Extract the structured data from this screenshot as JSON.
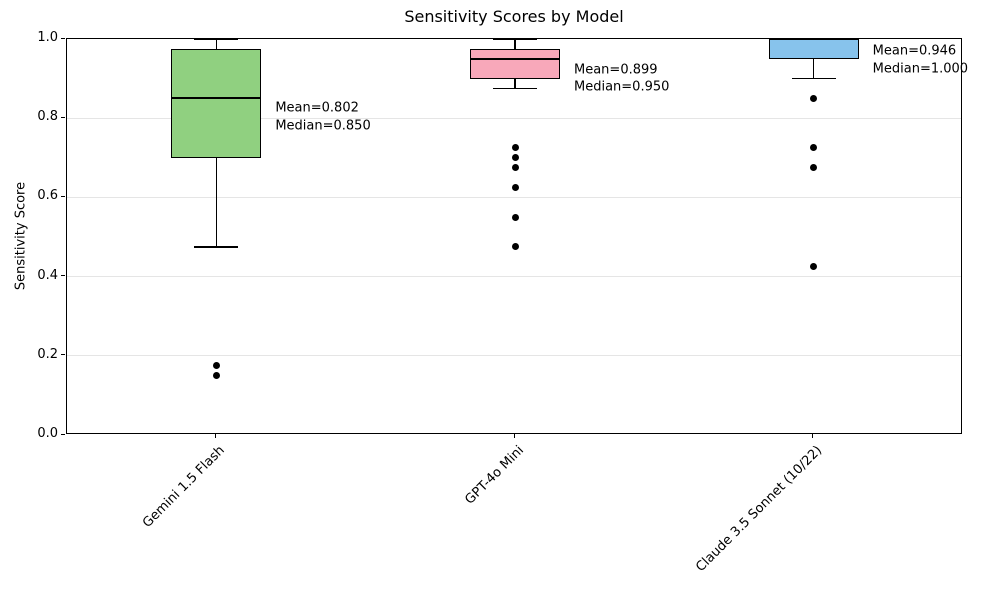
{
  "chart_data": {
    "type": "boxplot",
    "title": "Sensitivity Scores by Model",
    "xlabel": "",
    "ylabel": "Sensitivity Score",
    "ylim": [
      0.0,
      1.0
    ],
    "yticks": [
      0.0,
      0.2,
      0.4,
      0.6,
      0.8,
      1.0
    ],
    "ytick_labels": [
      "0.0",
      "0.2",
      "0.4",
      "0.6",
      "0.8",
      "1.0"
    ],
    "grid": "horizontal-light",
    "legend": "none",
    "categories": [
      "Gemini 1.5 Flash",
      "GPT-4o Mini",
      "Claude 3.5 Sonnet (10/22)"
    ],
    "series": [
      {
        "label": "Gemini 1.5 Flash",
        "box_color": "#90d080",
        "whisker_low": 0.475,
        "q1": 0.7,
        "median": 0.85,
        "q3": 0.975,
        "whisker_high": 1.0,
        "mean": 0.802,
        "outliers": [
          0.175,
          0.15
        ],
        "annotation_lines": [
          "Mean=0.802",
          "Median=0.850"
        ]
      },
      {
        "label": "GPT-4o Mini",
        "box_color": "#f8a8ba",
        "whisker_low": 0.875,
        "q1": 0.9,
        "median": 0.95,
        "q3": 0.975,
        "whisker_high": 1.0,
        "mean": 0.899,
        "outliers": [
          0.725,
          0.7,
          0.675,
          0.625,
          0.55,
          0.475
        ],
        "annotation_lines": [
          "Mean=0.899",
          "Median=0.950"
        ]
      },
      {
        "label": "Claude 3.5 Sonnet (10/22)",
        "box_color": "#87c3ec",
        "whisker_low": 0.9,
        "q1": 0.95,
        "median": 1.0,
        "q3": 1.0,
        "whisker_high": 1.0,
        "mean": 0.946,
        "outliers": [
          0.85,
          0.725,
          0.675,
          0.425
        ],
        "annotation_lines": [
          "Mean=0.946",
          "Median=1.000"
        ]
      }
    ],
    "style": {
      "edge_color": "#000000",
      "median_color": "#000000",
      "outlier_color": "#000000",
      "grid_color": "#e5e5e5",
      "background": "#ffffff"
    }
  }
}
